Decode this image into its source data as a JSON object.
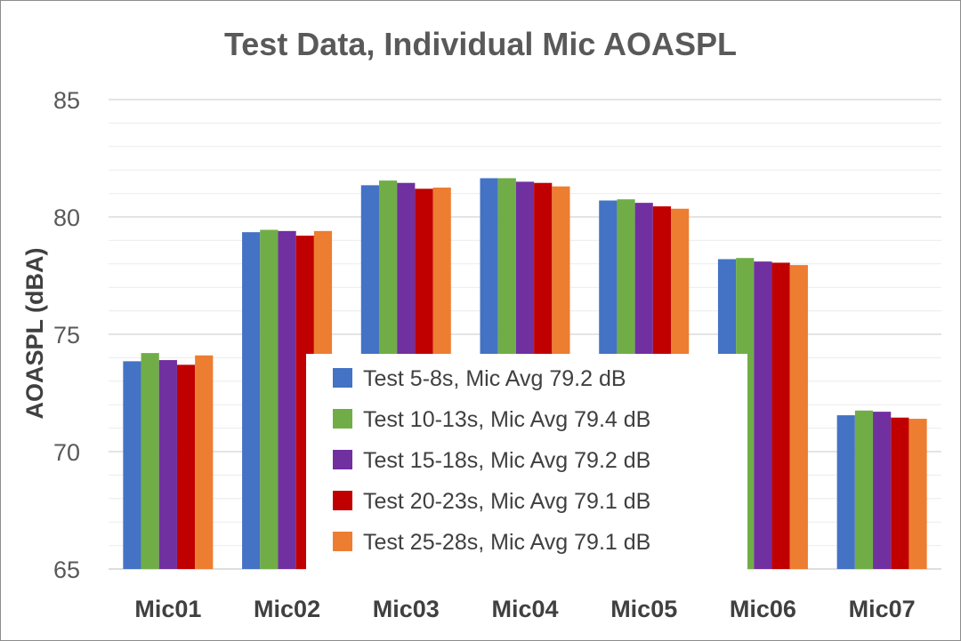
{
  "chart_data": {
    "type": "bar",
    "title": "Test Data, Individual Mic AOASPL",
    "xlabel": "",
    "ylabel": "AOASPL (dBA)",
    "ylim": [
      65,
      85
    ],
    "yticks": [
      65,
      70,
      75,
      80,
      85
    ],
    "minor_grid_step": 1,
    "grid": true,
    "legend_position": "center",
    "categories": [
      "Mic01",
      "Mic02",
      "Mic03",
      "Mic04",
      "Mic05",
      "Mic06",
      "Mic07"
    ],
    "series": [
      {
        "name": "Test 5-8s, Mic Avg 79.2 dB",
        "color": "#4472C4",
        "values": [
          73.85,
          79.35,
          81.35,
          81.65,
          80.7,
          78.2,
          71.55
        ]
      },
      {
        "name": "Test 10-13s, Mic Avg 79.4 dB",
        "color": "#70AD47",
        "values": [
          74.2,
          79.45,
          81.55,
          81.65,
          80.75,
          78.25,
          71.75
        ]
      },
      {
        "name": "Test 15-18s, Mic Avg 79.2 dB",
        "color": "#7030A0",
        "values": [
          73.9,
          79.4,
          81.45,
          81.5,
          80.6,
          78.1,
          71.7
        ]
      },
      {
        "name": "Test 20-23s, Mic Avg 79.1 dB",
        "color": "#C00000",
        "values": [
          73.7,
          79.2,
          81.2,
          81.45,
          80.45,
          78.05,
          71.45
        ]
      },
      {
        "name": "Test 25-28s, Mic Avg 79.1 dB",
        "color": "#ED7D31",
        "values": [
          74.1,
          79.4,
          81.25,
          81.3,
          80.35,
          77.95,
          71.4
        ]
      }
    ]
  }
}
